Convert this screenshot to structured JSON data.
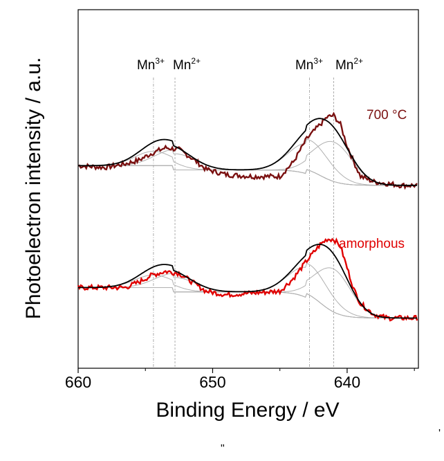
{
  "chart_data": {
    "type": "line",
    "xlabel": "Binding Energy / eV",
    "ylabel": "Photoelectron intensity / a.u.",
    "xlim": [
      660,
      634.7
    ],
    "x_reversed": true,
    "xticks": [
      660,
      650,
      640
    ],
    "yticks": [],
    "grid": false,
    "annotations": [
      {
        "text": "Mn",
        "sup": "3+",
        "x": 654.4
      },
      {
        "text": "Mn",
        "sup": "2+",
        "x": 652.8
      },
      {
        "text": "Mn",
        "sup": "3+",
        "x": 642.8
      },
      {
        "text": "Mn",
        "sup": "2+",
        "x": 641.0
      }
    ],
    "reference_lines_ev": [
      654.4,
      652.8,
      642.8,
      641.0
    ],
    "series": [
      {
        "name": "700 °C",
        "color": "#7a1010",
        "data_x": [
          660,
          658,
          656.5,
          655.5,
          654.5,
          653.5,
          652.5,
          651.5,
          650.5,
          649,
          647,
          645,
          644,
          643,
          642,
          641.5,
          641,
          640.5,
          640,
          639.5,
          639,
          638,
          637,
          636,
          634.7
        ],
        "data_y": [
          0.565,
          0.56,
          0.57,
          0.58,
          0.6,
          0.615,
          0.61,
          0.585,
          0.555,
          0.54,
          0.535,
          0.535,
          0.575,
          0.64,
          0.68,
          0.7,
          0.705,
          0.68,
          0.62,
          0.575,
          0.535,
          0.52,
          0.515,
          0.51,
          0.51
        ],
        "fit_components": [
          {
            "center": 654.4,
            "height": 0.04,
            "width": 1.4
          },
          {
            "center": 652.8,
            "height": 0.045,
            "width": 1.5
          },
          {
            "center": 642.8,
            "height": 0.085,
            "width": 1.5
          },
          {
            "center": 641.0,
            "height": 0.11,
            "width": 1.4
          }
        ]
      },
      {
        "name": "amorphous",
        "color": "#e00000",
        "data_x": [
          660,
          658,
          656.5,
          655.5,
          654.5,
          653.5,
          652.5,
          651.5,
          650.5,
          649,
          647,
          645,
          644,
          643,
          642,
          641.5,
          641,
          640.5,
          640,
          639.5,
          639,
          638,
          637,
          636,
          634.7
        ],
        "data_y": [
          0.225,
          0.225,
          0.225,
          0.24,
          0.26,
          0.27,
          0.265,
          0.24,
          0.215,
          0.205,
          0.21,
          0.215,
          0.25,
          0.3,
          0.345,
          0.36,
          0.36,
          0.34,
          0.28,
          0.22,
          0.18,
          0.15,
          0.14,
          0.14,
          0.14
        ],
        "fit_components": [
          {
            "center": 654.4,
            "height": 0.035,
            "width": 1.4
          },
          {
            "center": 652.8,
            "height": 0.04,
            "width": 1.5
          },
          {
            "center": 642.8,
            "height": 0.085,
            "width": 1.5
          },
          {
            "center": 641.0,
            "height": 0.12,
            "width": 1.3
          }
        ]
      }
    ]
  },
  "stray_marks": {
    "bottom_quote": "\"",
    "right_edge_mark": "'"
  }
}
